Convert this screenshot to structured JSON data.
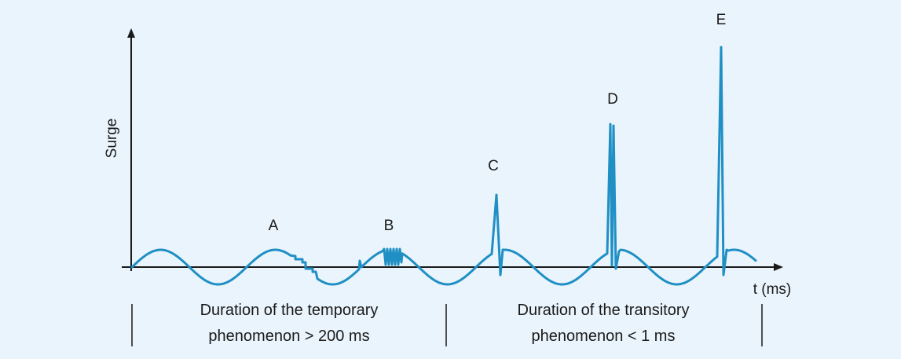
{
  "y_axis_label": "Surge",
  "x_axis_label": "t (ms)",
  "markers": {
    "A": "A",
    "B": "B",
    "C": "C",
    "D": "D",
    "E": "E"
  },
  "temporary": {
    "line1": "Duration of the temporary",
    "line2": "phenomenon > 200 ms"
  },
  "transitory": {
    "line1": "Duration of the transitory",
    "line2": "phenomenon < 1 ms"
  },
  "colors": {
    "background": "#eaf4fc",
    "waveform": "#1f8fc4",
    "axis": "#1a1a1a"
  }
}
